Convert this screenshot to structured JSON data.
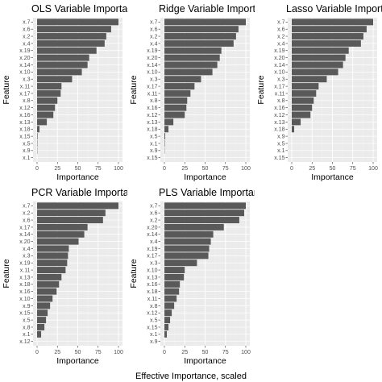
{
  "caption": "Effective Importance, scaled",
  "colors": {
    "panel_background": "#ebebeb",
    "grid_major": "#ffffff",
    "grid_minor": "#f2f2f2",
    "bar_fill": "#595959",
    "tick_text": "#4d4d4d",
    "text": "#000000"
  },
  "chart_data": [
    {
      "type": "bar",
      "orientation": "horizontal",
      "title": "OLS Variable Importance",
      "xlabel": "Importance",
      "ylabel": "Feature",
      "xlim": [
        0,
        100
      ],
      "xticks": [
        0,
        25,
        50,
        75,
        100
      ],
      "grid": true,
      "categories": [
        "x.7",
        "x.6",
        "x.2",
        "x.4",
        "x.19",
        "x.20",
        "x.14",
        "x.10",
        "x.3",
        "x.11",
        "x.17",
        "x.8",
        "x.12",
        "x.16",
        "x.13",
        "x.18",
        "x.15",
        "x.5",
        "x.9",
        "x.1"
      ],
      "values": [
        100,
        91,
        85,
        83,
        73,
        64,
        62,
        55,
        43,
        30,
        29,
        25,
        22,
        20,
        12,
        3,
        0.6,
        0.4,
        0.3,
        0
      ]
    },
    {
      "type": "bar",
      "orientation": "horizontal",
      "title": "Ridge Variable Importance",
      "xlabel": "Importance",
      "ylabel": "Feature",
      "xlim": [
        0,
        100
      ],
      "xticks": [
        0,
        25,
        50,
        75,
        100
      ],
      "grid": true,
      "categories": [
        "x.7",
        "x.6",
        "x.2",
        "x.4",
        "x.19",
        "x.20",
        "x.14",
        "x.10",
        "x.3",
        "x.17",
        "x.11",
        "x.8",
        "x.16",
        "x.12",
        "x.13",
        "x.18",
        "x.5",
        "x.1",
        "x.9",
        "x.15"
      ],
      "values": [
        100,
        91,
        88,
        85,
        70,
        68,
        65,
        59,
        45,
        37,
        32,
        28,
        27,
        25,
        11,
        5,
        1,
        0.5,
        0.3,
        0
      ]
    },
    {
      "type": "bar",
      "orientation": "horizontal",
      "title": "Lasso Variable Importance",
      "xlabel": "Importance",
      "ylabel": "Feature",
      "xlim": [
        0,
        100
      ],
      "xticks": [
        0,
        25,
        50,
        75,
        100
      ],
      "grid": true,
      "categories": [
        "x.7",
        "x.6",
        "x.2",
        "x.4",
        "x.19",
        "x.20",
        "x.14",
        "x.10",
        "x.3",
        "x.17",
        "x.11",
        "x.8",
        "x.16",
        "x.12",
        "x.13",
        "x.18",
        "x.9",
        "x.5",
        "x.1",
        "x.15"
      ],
      "values": [
        100,
        92,
        88,
        85,
        70,
        66,
        63,
        57,
        43,
        33,
        30,
        27,
        25,
        23,
        11,
        3,
        0,
        0,
        0,
        0
      ]
    },
    {
      "type": "bar",
      "orientation": "horizontal",
      "title": "PCR Variable Importance",
      "xlabel": "Importance",
      "ylabel": "Feature",
      "xlim": [
        0,
        100
      ],
      "xticks": [
        0,
        25,
        50,
        75,
        100
      ],
      "grid": true,
      "categories": [
        "x.7",
        "x.2",
        "x.6",
        "x.17",
        "x.14",
        "x.20",
        "x.4",
        "x.3",
        "x.19",
        "x.11",
        "x.13",
        "x.18",
        "x.16",
        "x.10",
        "x.9",
        "x.15",
        "x.5",
        "x.8",
        "x.1",
        "x.12"
      ],
      "values": [
        100,
        84,
        81,
        62,
        58,
        51,
        39,
        38,
        37,
        35,
        30,
        27,
        24,
        19,
        16,
        13,
        11,
        9,
        5,
        0
      ]
    },
    {
      "type": "bar",
      "orientation": "horizontal",
      "title": "PLS Variable Importance",
      "xlabel": "Importance",
      "ylabel": "Feature",
      "xlim": [
        0,
        100
      ],
      "xticks": [
        0,
        25,
        50,
        75,
        100
      ],
      "grid": true,
      "categories": [
        "x.7",
        "x.6",
        "x.2",
        "x.20",
        "x.14",
        "x.4",
        "x.19",
        "x.17",
        "x.3",
        "x.10",
        "x.13",
        "x.16",
        "x.18",
        "x.11",
        "x.8",
        "x.12",
        "x.5",
        "x.15",
        "x.1",
        "x.9"
      ],
      "values": [
        100,
        98,
        92,
        73,
        60,
        57,
        55,
        54,
        40,
        25,
        24,
        19,
        18,
        15,
        12,
        9,
        7,
        5,
        3,
        0
      ]
    }
  ]
}
